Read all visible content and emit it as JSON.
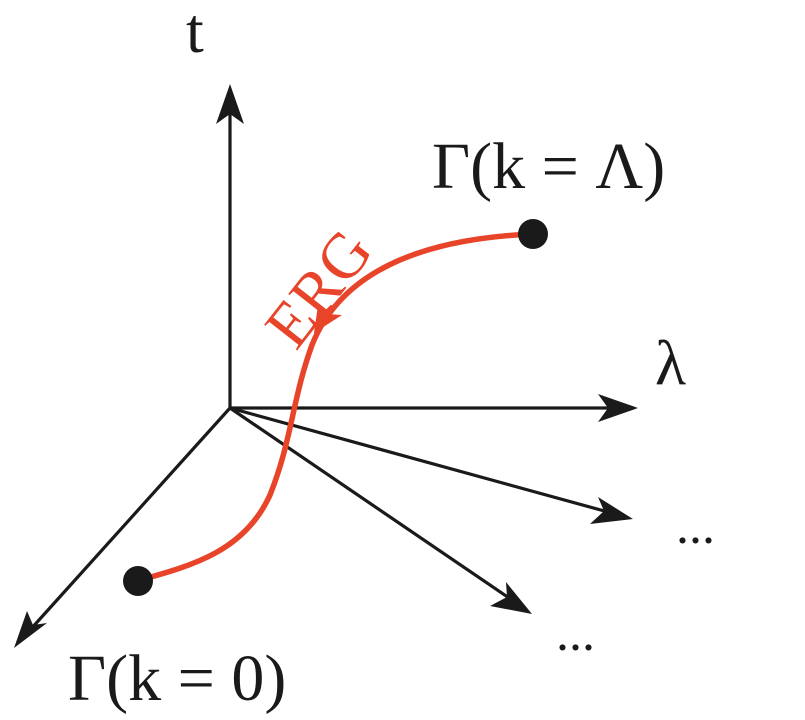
{
  "labels": {
    "t_axis": "t",
    "lambda_axis": "λ",
    "start_point": "Γ(k = Λ)",
    "end_point": "Γ(k = 0)",
    "flow": "ERG",
    "ellipsis_upper": "...",
    "ellipsis_lower": "..."
  },
  "colors": {
    "axes": "#1a1a1a",
    "flow": "#e8442a",
    "points": "#1a1a1a"
  }
}
